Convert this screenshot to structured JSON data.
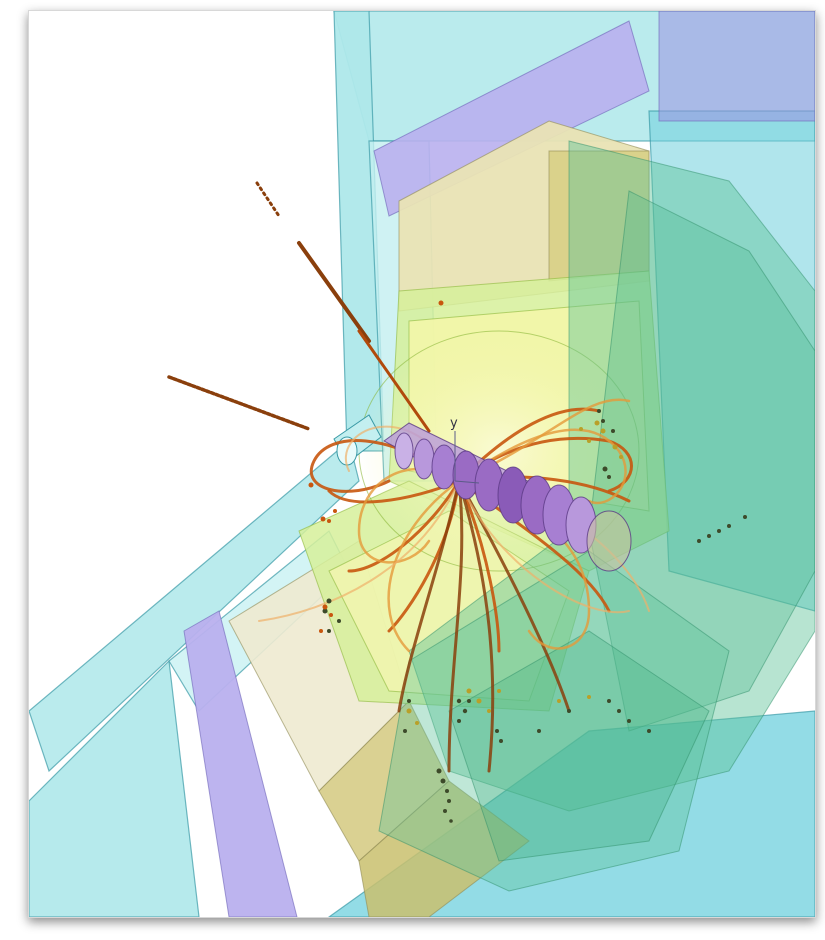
{
  "figure": {
    "axis_label": "y",
    "colors": {
      "background": "#ffffff",
      "muon_chamber": "#aee8ea",
      "muon_chamber_edge": "#3a9aa6",
      "return_yoke": "#b9b0ee",
      "hadron_calorimeter": "#e9e3b4",
      "em_calorimeter": "#d6f09a",
      "inner_volume": "#f3f6a8",
      "endcap_green": "#5fc49a",
      "tracker_purple": "#9a6bc4",
      "track_orange": "#c8560e",
      "track_brown": "#8a3f0c",
      "hit_dark": "#3d4a2a"
    }
  }
}
